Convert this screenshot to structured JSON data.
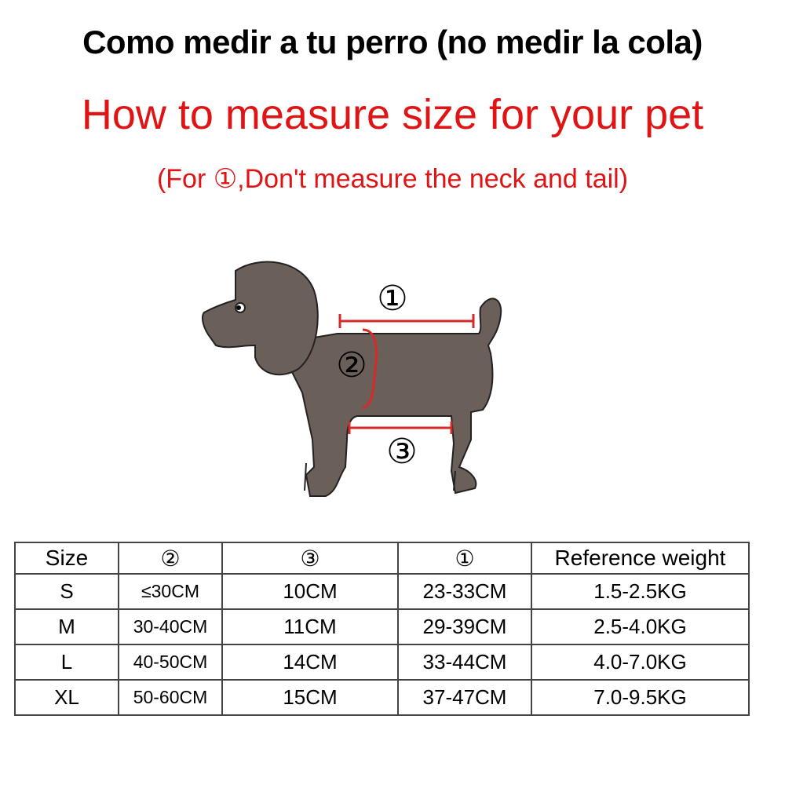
{
  "title_es": "Como medir a tu perro (no medir la cola)",
  "title_en": "How to measure size for your pet",
  "note": "(For ①,Don't measure the neck and tail)",
  "diagram": {
    "label_1": "①",
    "label_2": "②",
    "label_3": "③",
    "dog_color": "#6b5f59",
    "line_color": "#d62a2a"
  },
  "table": {
    "headers": [
      "Size",
      "②",
      "③",
      "①",
      "Reference weight"
    ],
    "rows": [
      [
        "S",
        "≤30CM",
        "10CM",
        "23-33CM",
        "1.5-2.5KG"
      ],
      [
        "M",
        "30-40CM",
        "11CM",
        "29-39CM",
        "2.5-4.0KG"
      ],
      [
        "L",
        "40-50CM",
        "14CM",
        "33-44CM",
        "4.0-7.0KG"
      ],
      [
        "XL",
        "50-60CM",
        "15CM",
        "37-47CM",
        "7.0-9.5KG"
      ]
    ]
  }
}
